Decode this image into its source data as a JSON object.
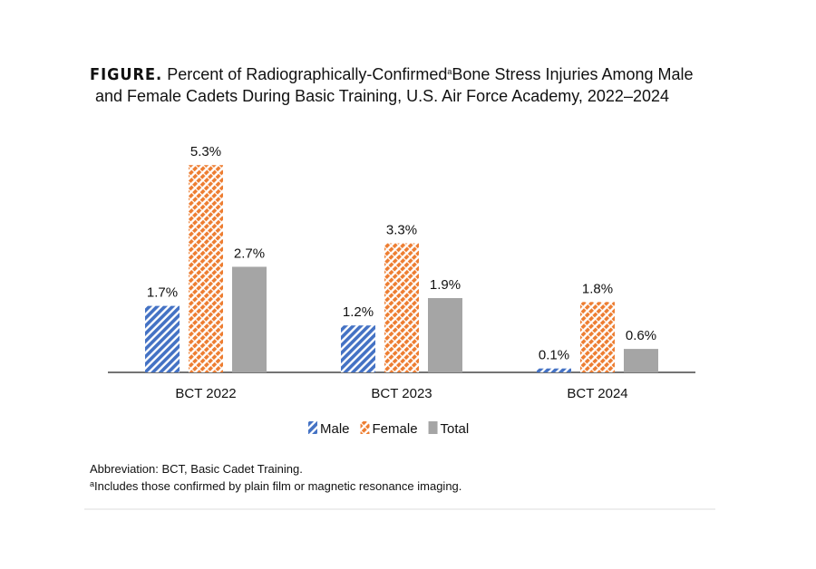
{
  "chart_data": {
    "type": "bar",
    "figure_label": "FIGURE.",
    "title_line1_before": "Percent of Radiographically-Confirmed",
    "title_footnote_mark": "a",
    "title_line1_after": "Bone Stress Injuries Among Male",
    "title_line2": "and Female Cadets During Basic Training, U.S. Air Force Academy, 2022–2024",
    "categories": [
      "BCT 2022",
      "BCT 2023",
      "BCT 2024"
    ],
    "series": [
      {
        "name": "Male",
        "color": "#4472c4",
        "pattern": "diagonal-stripes",
        "values": [
          1.7,
          1.2,
          0.1
        ],
        "value_labels": [
          "1.7%",
          "1.2%",
          "0.1%"
        ]
      },
      {
        "name": "Female",
        "color": "#ed7d31",
        "pattern": "crosshatch",
        "values": [
          5.3,
          3.3,
          1.8
        ],
        "value_labels": [
          "5.3%",
          "3.3%",
          "1.8%"
        ]
      },
      {
        "name": "Total",
        "color": "#a5a5a5",
        "pattern": "solid",
        "values": [
          2.7,
          1.9,
          0.6
        ],
        "value_labels": [
          "2.7%",
          "1.9%",
          "0.6%"
        ]
      }
    ],
    "ylim": [
      0,
      6
    ],
    "legend": "bottom",
    "abbreviation_note": "Abbreviation: BCT, Basic Cadet Training.",
    "footnote_mark": "a",
    "footnote": "Includes those confirmed by plain film or magnetic resonance imaging."
  }
}
